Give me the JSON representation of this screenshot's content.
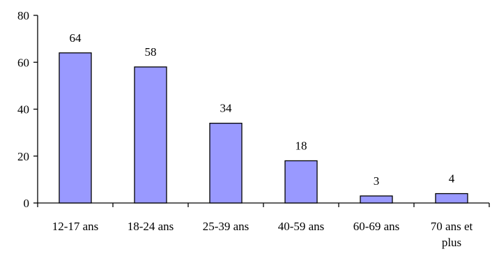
{
  "chart_data": {
    "type": "bar",
    "categories": [
      [
        "12-17 ans"
      ],
      [
        "18-24 ans"
      ],
      [
        "25-39 ans"
      ],
      [
        "40-59 ans"
      ],
      [
        "60-69 ans"
      ],
      [
        "70 ans et",
        "plus"
      ]
    ],
    "values": [
      64,
      58,
      34,
      18,
      3,
      4
    ],
    "ylim": [
      0,
      80
    ],
    "yticks": [
      0,
      20,
      40,
      60,
      80
    ],
    "grid": false,
    "bar_color": "#9999ff",
    "bar_edge_color": "#000000"
  }
}
